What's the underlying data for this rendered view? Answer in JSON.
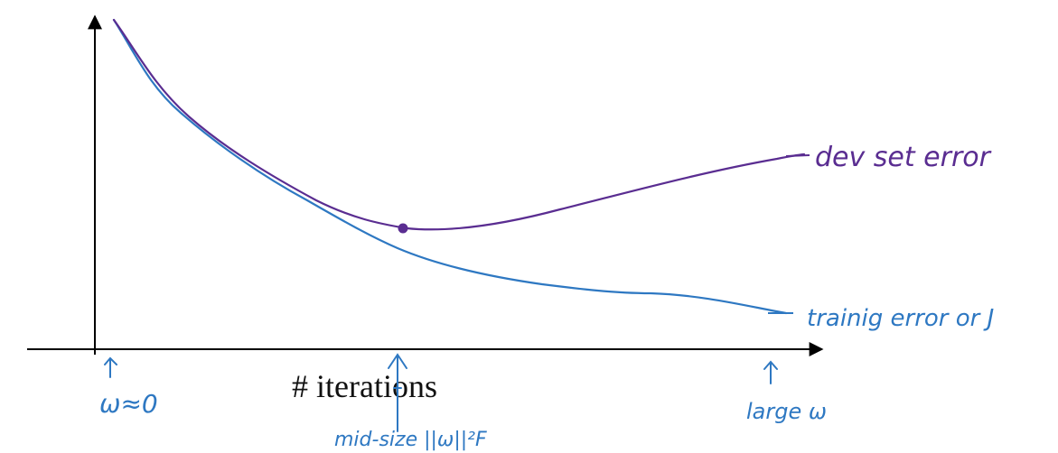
{
  "colors": {
    "dev_curve": "#5a2d91",
    "train_curve": "#2e78c2",
    "axes": "#000000",
    "annotation": "#2e78c2",
    "dev_label": "#5a2d91",
    "typed_label": "#111111"
  },
  "labels": {
    "x_axis": "# iterations",
    "dev_curve": "dev set error",
    "train_curve": "trainig error or J",
    "left_annotation": "ω≈0",
    "middle_annotation": "mid-size ||ω||²F",
    "right_annotation": "large ω"
  }
}
